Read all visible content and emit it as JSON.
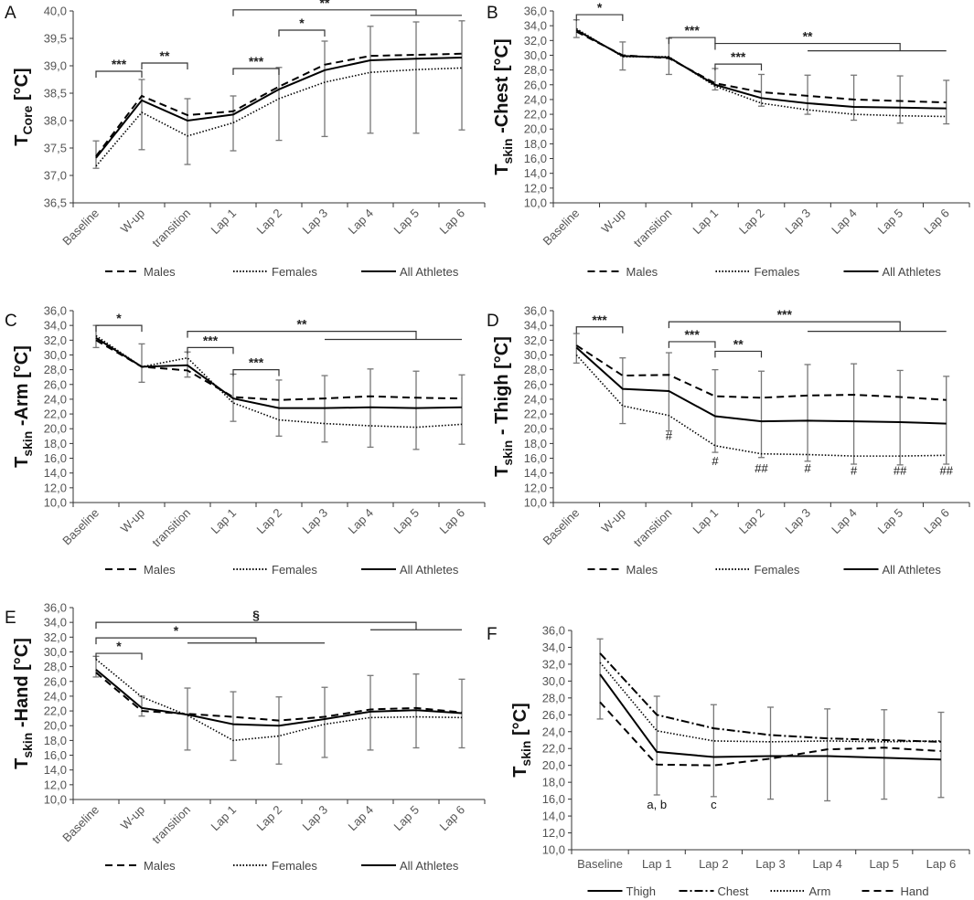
{
  "chart_data": [
    {
      "panel": "A",
      "type": "line",
      "ylabel": {
        "main": "T",
        "sub": "Core",
        "unit": " [°C]"
      },
      "ylim": [
        36.5,
        40.0
      ],
      "yticks": [
        [
          "36,5",
          36.5
        ],
        [
          "37,0",
          37.0
        ],
        [
          "37,5",
          37.5
        ],
        [
          "38,0",
          38.0
        ],
        [
          "38,5",
          38.5
        ],
        [
          "39,0",
          39.0
        ],
        [
          "39,5",
          39.5
        ],
        [
          "40,0",
          40.0
        ]
      ],
      "categories": [
        "Baseline",
        "W-up",
        "transition",
        "Lap 1",
        "Lap 2",
        "Lap 3",
        "Lap 4",
        "Lap 5",
        "Lap 6"
      ],
      "rotate_labels": true,
      "series": [
        {
          "name": "Males",
          "style": "dashed",
          "values": [
            37.35,
            38.45,
            38.1,
            38.17,
            38.62,
            39.02,
            39.18,
            39.2,
            39.22
          ]
        },
        {
          "name": "Females",
          "style": "dotted",
          "values": [
            37.17,
            38.15,
            37.72,
            37.96,
            38.4,
            38.7,
            38.88,
            38.93,
            38.96
          ]
        },
        {
          "name": "All Athletes",
          "style": "solid",
          "values": [
            37.32,
            38.37,
            38.0,
            38.11,
            38.57,
            38.92,
            39.1,
            39.13,
            39.15
          ]
        }
      ],
      "error_bars": [
        [
          37.13,
          37.63
        ],
        [
          37.47,
          38.75
        ],
        [
          37.2,
          38.4
        ],
        [
          37.45,
          38.45
        ],
        [
          37.64,
          38.97
        ],
        [
          37.71,
          39.45
        ],
        [
          37.77,
          39.72
        ],
        [
          37.77,
          39.8
        ],
        [
          37.83,
          39.82
        ]
      ],
      "brackets": [
        {
          "label": "***",
          "from": 0,
          "to": 1,
          "y": 38.9
        },
        {
          "label": "**",
          "from": 1,
          "to": 2,
          "y": 39.05
        },
        {
          "label": "***",
          "from": 3,
          "to": 4,
          "y": 38.95
        },
        {
          "label": "*",
          "from": 4,
          "to": 5,
          "y": 39.65
        },
        {
          "label": "**",
          "from": 3,
          "to": 7,
          "y": 40.02,
          "line": {
            "from": 6,
            "to": 8,
            "y": 39.92
          }
        }
      ],
      "markers": []
    },
    {
      "panel": "B",
      "type": "line",
      "ylabel": {
        "main": "T",
        "sub": "skin",
        "unit": " -Chest [°C]"
      },
      "ylim": [
        10,
        36
      ],
      "yticks": [
        [
          "10,0",
          10
        ],
        [
          "12,0",
          12
        ],
        [
          "14,0",
          14
        ],
        [
          "16,0",
          16
        ],
        [
          "18,0",
          18
        ],
        [
          "20,0",
          20
        ],
        [
          "22,0",
          22
        ],
        [
          "24,0",
          24
        ],
        [
          "26,0",
          26
        ],
        [
          "28,0",
          28
        ],
        [
          "30,0",
          30
        ],
        [
          "32,0",
          32
        ],
        [
          "34,0",
          34
        ],
        [
          "36,0",
          36
        ]
      ],
      "categories": [
        "Baseline",
        "W-up",
        "transition",
        "Lap 1",
        "Lap 2",
        "Lap 3",
        "Lap 4",
        "Lap 5",
        "Lap 6"
      ],
      "rotate_labels": true,
      "series": [
        {
          "name": "Males",
          "style": "dashed",
          "values": [
            33.2,
            30.0,
            29.6,
            26.2,
            25.0,
            24.5,
            24.0,
            23.8,
            23.6
          ]
        },
        {
          "name": "Females",
          "style": "dotted",
          "values": [
            33.6,
            29.8,
            29.8,
            25.8,
            23.5,
            22.6,
            22.0,
            21.8,
            21.7
          ]
        },
        {
          "name": "All Athletes",
          "style": "solid",
          "values": [
            33.4,
            29.9,
            29.7,
            26.0,
            24.2,
            23.5,
            23.0,
            22.9,
            22.8
          ]
        }
      ],
      "error_bars": [
        [
          32.4,
          34.8
        ],
        [
          28.0,
          31.8
        ],
        [
          27.4,
          32.3
        ],
        [
          25.3,
          28.2
        ],
        [
          23.1,
          27.4
        ],
        [
          22.0,
          27.3
        ],
        [
          21.2,
          27.3
        ],
        [
          20.8,
          27.2
        ],
        [
          20.7,
          26.6
        ]
      ],
      "brackets": [
        {
          "label": "*",
          "from": 0,
          "to": 1,
          "y": 35.5
        },
        {
          "label": "***",
          "from": 2,
          "to": 3,
          "y": 32.4
        },
        {
          "label": "***",
          "from": 3,
          "to": 4,
          "y": 28.8
        },
        {
          "label": "**",
          "from": 3,
          "to": 7,
          "y": 31.6,
          "line": {
            "from": 5,
            "to": 8,
            "y": 30.6
          }
        }
      ],
      "markers": []
    },
    {
      "panel": "C",
      "type": "line",
      "ylabel": {
        "main": "T",
        "sub": "skin",
        "unit": " -Arm [°C]"
      },
      "ylim": [
        10,
        36
      ],
      "yticks": [
        [
          "10,0",
          10
        ],
        [
          "12,0",
          12
        ],
        [
          "14,0",
          14
        ],
        [
          "16,0",
          16
        ],
        [
          "18,0",
          18
        ],
        [
          "20,0",
          20
        ],
        [
          "22,0",
          22
        ],
        [
          "24,0",
          24
        ],
        [
          "26,0",
          26
        ],
        [
          "28,0",
          28
        ],
        [
          "30,0",
          30
        ],
        [
          "32,0",
          32
        ],
        [
          "34,0",
          34
        ],
        [
          "36,0",
          36
        ]
      ],
      "categories": [
        "Baseline",
        "W-up",
        "transition",
        "Lap 1",
        "Lap 2",
        "Lap 3",
        "Lap 4",
        "Lap 5",
        "Lap 6"
      ],
      "rotate_labels": true,
      "series": [
        {
          "name": "Males",
          "style": "dashed",
          "values": [
            32.0,
            28.4,
            27.9,
            24.3,
            23.9,
            24.1,
            24.4,
            24.2,
            24.1
          ]
        },
        {
          "name": "Females",
          "style": "dotted",
          "values": [
            32.6,
            28.4,
            29.6,
            23.5,
            21.2,
            20.7,
            20.4,
            20.2,
            20.6
          ]
        },
        {
          "name": "All Athletes",
          "style": "solid",
          "values": [
            32.3,
            28.4,
            28.6,
            24.1,
            22.8,
            22.8,
            22.9,
            22.8,
            22.9
          ]
        }
      ],
      "error_bars": [
        [
          31.0,
          34.0
        ],
        [
          26.3,
          31.5
        ],
        [
          27.0,
          30.4
        ],
        [
          21.0,
          27.4
        ],
        [
          19.0,
          26.6
        ],
        [
          18.2,
          27.2
        ],
        [
          17.5,
          28.1
        ],
        [
          17.2,
          27.8
        ],
        [
          17.9,
          27.3
        ]
      ],
      "brackets": [
        {
          "label": "*",
          "from": 0,
          "to": 1,
          "y": 34.0
        },
        {
          "label": "***",
          "from": 2,
          "to": 3,
          "y": 31.0
        },
        {
          "label": "***",
          "from": 3,
          "to": 4,
          "y": 28.0
        },
        {
          "label": "**",
          "from": 2,
          "to": 7,
          "y": 33.2,
          "line": {
            "from": 5,
            "to": 8,
            "y": 32.1
          }
        }
      ],
      "markers": []
    },
    {
      "panel": "D",
      "type": "line",
      "ylabel": {
        "main": "T",
        "sub": "skin",
        "unit": " - Thigh [°C]"
      },
      "ylim": [
        10,
        36
      ],
      "yticks": [
        [
          "10,0",
          10
        ],
        [
          "12,0",
          12
        ],
        [
          "14,0",
          14
        ],
        [
          "16,0",
          16
        ],
        [
          "18,0",
          18
        ],
        [
          "20,0",
          20
        ],
        [
          "22,0",
          22
        ],
        [
          "24,0",
          24
        ],
        [
          "26,0",
          26
        ],
        [
          "28,0",
          28
        ],
        [
          "30,0",
          30
        ],
        [
          "32,0",
          32
        ],
        [
          "34,0",
          34
        ],
        [
          "36,0",
          36
        ]
      ],
      "categories": [
        "Baseline",
        "W-up",
        "transition",
        "Lap 1",
        "Lap 2",
        "Lap 3",
        "Lap 4",
        "Lap 5",
        "Lap 6"
      ],
      "rotate_labels": true,
      "series": [
        {
          "name": "Males",
          "style": "dashed",
          "values": [
            31.3,
            27.2,
            27.3,
            24.4,
            24.2,
            24.5,
            24.6,
            24.3,
            23.9
          ]
        },
        {
          "name": "Females",
          "style": "dotted",
          "values": [
            30.0,
            23.1,
            21.8,
            17.7,
            16.6,
            16.5,
            16.3,
            16.3,
            16.4
          ]
        },
        {
          "name": "All Athletes",
          "style": "solid",
          "values": [
            31.0,
            25.4,
            25.1,
            21.7,
            21.0,
            21.1,
            21.0,
            20.9,
            20.7
          ]
        }
      ],
      "error_bars": [
        [
          28.9,
          32.9
        ],
        [
          20.7,
          29.6
        ],
        [
          19.7,
          30.3
        ],
        [
          16.8,
          28.0
        ],
        [
          16.1,
          27.8
        ],
        [
          15.6,
          28.7
        ],
        [
          15.2,
          28.8
        ],
        [
          15.1,
          27.9
        ],
        [
          15.2,
          27.1
        ]
      ],
      "brackets": [
        {
          "label": "***",
          "from": 0,
          "to": 1,
          "y": 33.8
        },
        {
          "label": "***",
          "from": 2,
          "to": 3,
          "y": 31.8
        },
        {
          "label": "**",
          "from": 3,
          "to": 4,
          "y": 30.5
        },
        {
          "label": "***",
          "from": 2,
          "to": 7,
          "y": 34.5,
          "line": {
            "from": 5,
            "to": 8,
            "y": 33.2
          }
        }
      ],
      "markers": [
        {
          "label": "#",
          "x": 2,
          "y": 19.1
        },
        {
          "label": "#",
          "x": 3,
          "y": 15.7
        },
        {
          "label": "##",
          "x": 4,
          "y": 14.7
        },
        {
          "label": "#",
          "x": 5,
          "y": 14.7
        },
        {
          "label": "#",
          "x": 6,
          "y": 14.4
        },
        {
          "label": "##",
          "x": 7,
          "y": 14.4
        },
        {
          "label": "##",
          "x": 8,
          "y": 14.4
        }
      ]
    },
    {
      "panel": "E",
      "type": "line",
      "ylabel": {
        "main": "T",
        "sub": "skin",
        "unit": " -Hand [°C]"
      },
      "ylim": [
        10,
        36
      ],
      "yticks": [
        [
          "10,0",
          10
        ],
        [
          "12,0",
          12
        ],
        [
          "14,0",
          14
        ],
        [
          "16,0",
          16
        ],
        [
          "18,0",
          18
        ],
        [
          "20,0",
          20
        ],
        [
          "22,0",
          22
        ],
        [
          "24,0",
          24
        ],
        [
          "26,0",
          26
        ],
        [
          "28,0",
          28
        ],
        [
          "30,0",
          30
        ],
        [
          "32,0",
          32
        ],
        [
          "34,0",
          34
        ],
        [
          "36,0",
          36
        ]
      ],
      "categories": [
        "Baseline",
        "W-up",
        "transition",
        "Lap 1",
        "Lap 2",
        "Lap 3",
        "Lap 4",
        "Lap 5",
        "Lap 6"
      ],
      "rotate_labels": true,
      "series": [
        {
          "name": "Males",
          "style": "dashed",
          "values": [
            27.2,
            22.0,
            21.6,
            21.2,
            20.7,
            21.2,
            22.2,
            22.4,
            21.8
          ]
        },
        {
          "name": "Females",
          "style": "dotted",
          "values": [
            29.0,
            23.9,
            21.4,
            18.0,
            18.6,
            20.2,
            21.1,
            21.2,
            21.1
          ]
        },
        {
          "name": "All Athletes",
          "style": "solid",
          "values": [
            27.6,
            22.4,
            21.5,
            20.2,
            20.0,
            20.9,
            21.9,
            22.1,
            21.7
          ]
        }
      ],
      "error_bars": [
        [
          26.6,
          29.4
        ],
        [
          21.3,
          24.0
        ],
        [
          16.7,
          25.1
        ],
        [
          15.3,
          24.6
        ],
        [
          14.8,
          23.9
        ],
        [
          15.7,
          25.2
        ],
        [
          16.7,
          26.8
        ],
        [
          17.0,
          27.0
        ],
        [
          17.0,
          26.3
        ]
      ],
      "brackets": [
        {
          "label": "§",
          "from": 0,
          "to": 7,
          "y": 34.0,
          "line": {
            "from": 6,
            "to": 8,
            "y": 33.0
          }
        },
        {
          "label": "*",
          "from": 0,
          "to": 3.5,
          "y": 31.9,
          "line": {
            "from": 2,
            "to": 5,
            "y": 31.2
          }
        },
        {
          "label": "*",
          "from": 0,
          "to": 1,
          "y": 29.8
        }
      ],
      "markers": []
    },
    {
      "panel": "F",
      "type": "line",
      "ylabel": {
        "main": "T",
        "sub": "skin",
        "unit": " [°C]"
      },
      "ylim": [
        10,
        36
      ],
      "yticks": [
        [
          "10,0",
          10
        ],
        [
          "12,0",
          12
        ],
        [
          "14,0",
          14
        ],
        [
          "16,0",
          16
        ],
        [
          "18,0",
          18
        ],
        [
          "20,0",
          20
        ],
        [
          "22,0",
          22
        ],
        [
          "24,0",
          24
        ],
        [
          "26,0",
          26
        ],
        [
          "28,0",
          28
        ],
        [
          "30,0",
          30
        ],
        [
          "32,0",
          32
        ],
        [
          "34,0",
          34
        ],
        [
          "36,0",
          36
        ]
      ],
      "categories": [
        "Baseline",
        "Lap 1",
        "Lap 2",
        "Lap 3",
        "Lap 4",
        "Lap 5",
        "Lap 6"
      ],
      "rotate_labels": false,
      "series": [
        {
          "name": "Thigh",
          "style": "solid",
          "values": [
            30.8,
            21.6,
            21.0,
            21.1,
            21.1,
            20.9,
            20.7
          ]
        },
        {
          "name": "Chest",
          "style": "dashdot",
          "values": [
            33.3,
            26.0,
            24.4,
            23.6,
            23.2,
            23.0,
            22.8
          ]
        },
        {
          "name": "Arm",
          "style": "dotted",
          "values": [
            32.2,
            24.1,
            22.9,
            22.8,
            22.9,
            22.8,
            22.9
          ]
        },
        {
          "name": "Hand",
          "style": "dashed",
          "values": [
            27.5,
            20.1,
            20.0,
            20.8,
            21.9,
            22.1,
            21.7
          ]
        }
      ],
      "error_bars": [
        [
          25.5,
          35.0
        ],
        [
          16.5,
          28.2
        ],
        [
          16.3,
          27.2
        ],
        [
          16.0,
          26.9
        ],
        [
          15.8,
          26.7
        ],
        [
          16.0,
          26.6
        ],
        [
          16.2,
          26.3
        ]
      ],
      "brackets": [],
      "markers": [
        {
          "label": "a, b",
          "x": 1,
          "y": 15.4
        },
        {
          "label": "c",
          "x": 2,
          "y": 15.4
        }
      ]
    }
  ]
}
